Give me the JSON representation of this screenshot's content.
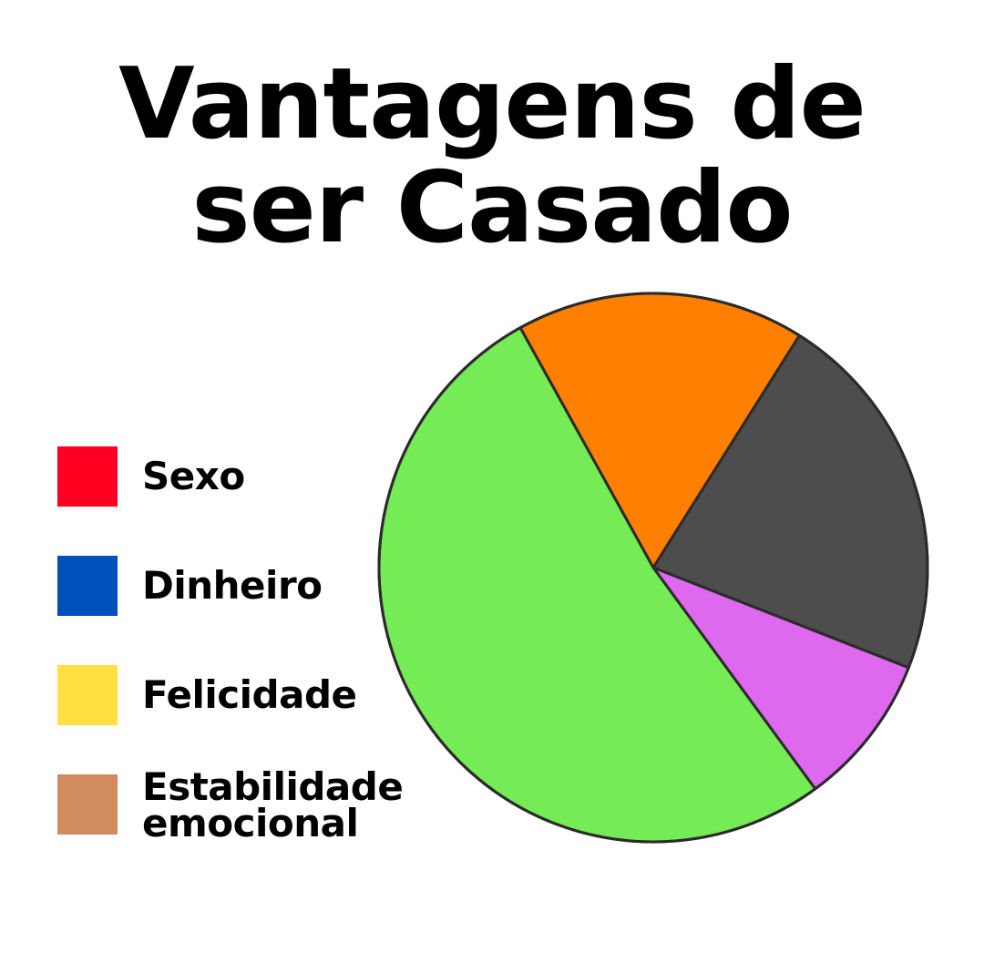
{
  "title_line1": "Vantagens de",
  "title_line2": "ser Casado",
  "legend": [
    {
      "label": "Sexo",
      "color": "#ff0022"
    },
    {
      "label": "Dinheiro",
      "color": "#0050bb"
    },
    {
      "label": "Felicidade",
      "color": "#ffe040"
    },
    {
      "label": "Estabilidade emocional",
      "color": "#d18b5e"
    }
  ],
  "chart_data": {
    "type": "pie",
    "title": "Vantagens de ser Casado",
    "start_angle_deg": -119,
    "slices": [
      {
        "value": 17,
        "color": "#ff8000"
      },
      {
        "value": 22,
        "color": "#4d4d4d"
      },
      {
        "value": 9,
        "color": "#de68ee"
      },
      {
        "value": 52,
        "color": "#75eb55"
      }
    ],
    "legend_position": "left"
  }
}
